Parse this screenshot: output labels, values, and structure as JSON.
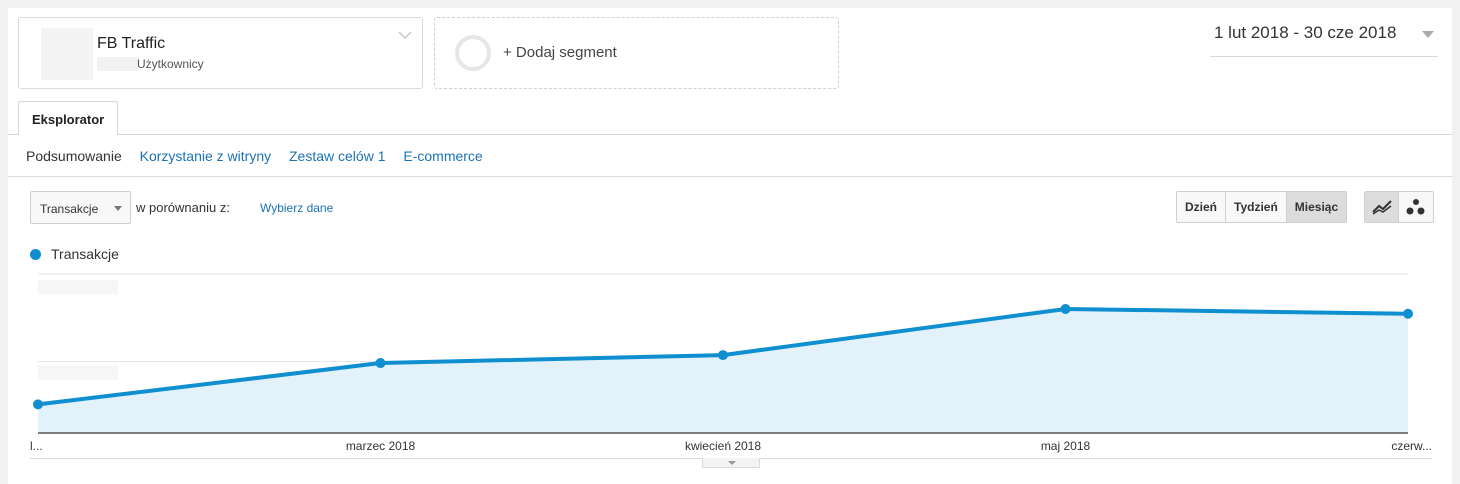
{
  "segments": {
    "primary": {
      "title": "FB Traffic",
      "subtitle": "Użytkownicy"
    },
    "add_label": "+ Dodaj segment"
  },
  "date_range": "1 lut 2018 - 30 cze 2018",
  "tabs": [
    {
      "label": "Eksplorator",
      "active": true
    }
  ],
  "subnav": [
    {
      "label": "Podsumowanie",
      "current": true
    },
    {
      "label": "Korzystanie z witryny",
      "current": false
    },
    {
      "label": "Zestaw celów 1",
      "current": false
    },
    {
      "label": "E-commerce",
      "current": false
    }
  ],
  "metric": {
    "selected": "Transakcje",
    "compare_label": "w porównaniu z:",
    "compare_link": "Wybierz dane"
  },
  "period_buttons": [
    {
      "label": "Dzień",
      "active": false
    },
    {
      "label": "Tydzień",
      "active": false
    },
    {
      "label": "Miesiąc",
      "active": true
    }
  ],
  "chart_types": [
    {
      "icon": "line-chart-icon",
      "active": true
    },
    {
      "icon": "motion-chart-icon",
      "active": false
    }
  ],
  "colors": {
    "series": "#0f8fcf",
    "area": "#e3f2fa",
    "link": "#1a73b8"
  },
  "chart_data": {
    "type": "area",
    "series": [
      {
        "name": "Transakcje",
        "values": [
          0.18,
          0.44,
          0.49,
          0.78,
          0.75
        ]
      }
    ],
    "x_labels": [
      "l...",
      "marzec 2018",
      "kwiecień 2018",
      "maj 2018",
      "czerw..."
    ],
    "grid": true,
    "legend": "top-left"
  }
}
